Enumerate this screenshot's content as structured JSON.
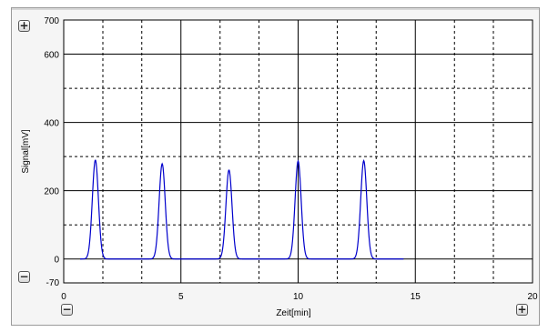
{
  "chart_data": {
    "type": "line",
    "xlabel": "Zeit[min]",
    "ylabel": "Signal[mV]",
    "xlim": [
      0,
      20
    ],
    "ylim": [
      -70,
      700
    ],
    "x_ticks": [
      0,
      5,
      10,
      15,
      20
    ],
    "y_ticks": [
      -70,
      0,
      200,
      400,
      600,
      700
    ],
    "grid": "on",
    "solid_grid_x": [
      0,
      5,
      10,
      15,
      20
    ],
    "dashed_grid_x": [
      1.67,
      3.33,
      6.67,
      8.33,
      11.67,
      13.33,
      16.67,
      18.33
    ],
    "solid_grid_y": [
      0,
      200,
      400,
      600
    ],
    "dashed_grid_y": [
      100,
      300,
      500
    ],
    "series": [
      {
        "color": "#0000cc",
        "x_range": [
          0.7,
          14.5
        ],
        "peaks": [
          {
            "time": 1.35,
            "height": 290
          },
          {
            "time": 4.2,
            "height": 279
          },
          {
            "time": 7.05,
            "height": 261
          },
          {
            "time": 10.0,
            "height": 287
          },
          {
            "time": 12.8,
            "height": 288
          }
        ]
      }
    ]
  },
  "controls": {
    "zoom_y_in": "+",
    "zoom_y_out": "−",
    "zoom_x_out": "−",
    "zoom_x_in": "+"
  },
  "colors": {
    "trace": "#0000cc",
    "grid": "#000000",
    "plot_background": "#ffffff"
  }
}
